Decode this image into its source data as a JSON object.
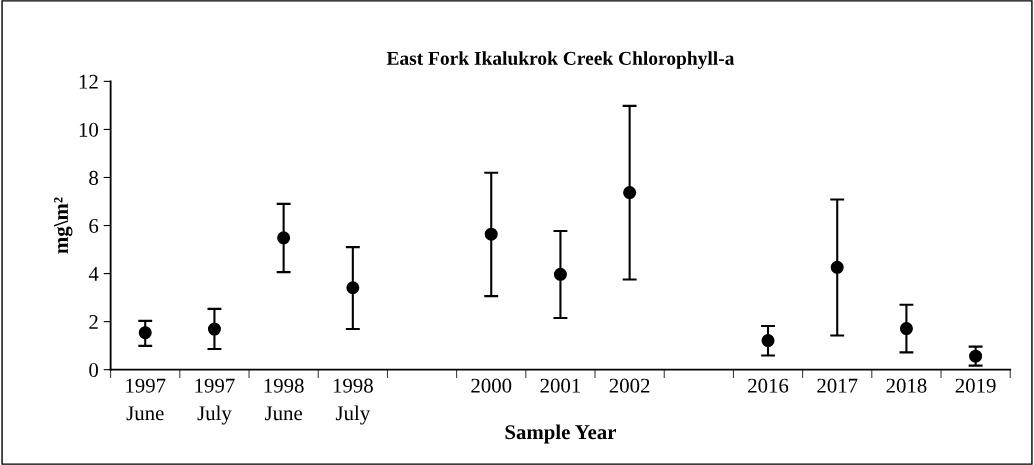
{
  "chart_data": {
    "type": "scatter",
    "title": "East Fork Ikalukrok Creek Chlorophyll-a",
    "xlabel": "Sample Year",
    "ylabel": "mg\\m²",
    "categories": [
      "1997\nJune",
      "1997\nJuly",
      "1998\nJune",
      "1998\nJuly",
      null,
      "2000",
      "2001",
      "2002",
      null,
      "2016",
      "2017",
      "2018",
      "2019"
    ],
    "values": [
      1.54,
      1.69,
      5.49,
      3.41,
      null,
      5.64,
      3.97,
      7.37,
      null,
      1.21,
      4.26,
      1.71,
      0.56
    ],
    "errors": [
      [
        0.99,
        2.03
      ],
      [
        0.86,
        2.53
      ],
      [
        4.06,
        6.9
      ],
      [
        1.69,
        5.1
      ],
      null,
      [
        3.06,
        8.2
      ],
      [
        2.15,
        5.77
      ],
      [
        3.75,
        10.98
      ],
      null,
      [
        0.59,
        1.82
      ],
      [
        1.42,
        7.08
      ],
      [
        0.72,
        2.7
      ],
      [
        0.17,
        0.96
      ]
    ],
    "color": "#000000",
    "marker": "circle",
    "ylim": [
      0,
      12
    ],
    "yticks": [
      0,
      2,
      4,
      6,
      8,
      10,
      12
    ],
    "grid": false,
    "legend": false
  }
}
